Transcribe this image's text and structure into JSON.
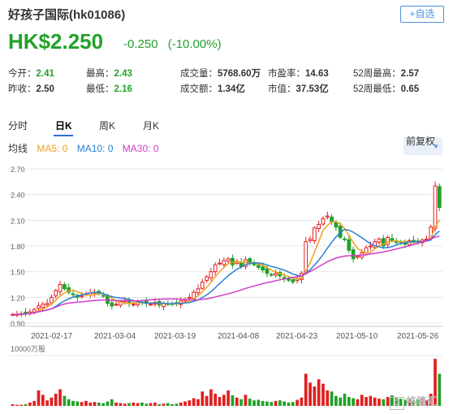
{
  "header": {
    "title": "好孩子国际(hk01086)",
    "watch_label": "+自选",
    "price": "HK$2.250",
    "change": "-0.250",
    "change_pct": "(-10.00%)"
  },
  "stats": [
    [
      {
        "label": "今开：",
        "value": "2.41",
        "color": "up"
      },
      {
        "label": "最高：",
        "value": "2.43",
        "color": "up"
      },
      {
        "label": "成交量：",
        "value": "5768.60万",
        "color": "neutral"
      },
      {
        "label": "市盈率：",
        "value": "14.63",
        "color": "neutral"
      },
      {
        "label": "52周最高：",
        "value": "2.57",
        "color": "neutral"
      }
    ],
    [
      {
        "label": "昨收：",
        "value": "2.50",
        "color": "neutral"
      },
      {
        "label": "最低：",
        "value": "2.16",
        "color": "up"
      },
      {
        "label": "成交额：",
        "value": "1.34亿",
        "color": "neutral"
      },
      {
        "label": "市值：",
        "value": "37.53亿",
        "color": "neutral"
      },
      {
        "label": "52周最低：",
        "value": "0.65",
        "color": "neutral"
      }
    ]
  ],
  "tabs": [
    "分时",
    "日K",
    "周K",
    "月K"
  ],
  "active_tab": "日K",
  "ma": {
    "label": "均线",
    "ma5": "MA5: 0",
    "ma10": "MA10: 0",
    "ma30": "MA30: 0"
  },
  "adjust_label": "前复权",
  "colors": {
    "up": "#e02020",
    "down": "#22a12a",
    "ma5": "#f0a020",
    "ma10": "#2a7fd4",
    "ma30": "#d23cc8"
  },
  "chart_data": {
    "type": "candlestick",
    "y_ticks": [
      "2.70",
      "2.40",
      "2.10",
      "1.80",
      "1.50",
      "1.20",
      "0.90"
    ],
    "x_ticks": [
      "2021-02-17",
      "2021-03-04",
      "2021-03-19",
      "2021-04-08",
      "2021-04-23",
      "2021-05-10",
      "2021-05-26"
    ],
    "volume_label": "10000万股",
    "ylim": [
      0.9,
      2.7
    ],
    "close": [
      1.0,
      1.0,
      1.01,
      1.02,
      1.03,
      1.06,
      1.1,
      1.12,
      1.13,
      1.2,
      1.28,
      1.35,
      1.3,
      1.26,
      1.23,
      1.2,
      1.22,
      1.24,
      1.25,
      1.26,
      1.24,
      1.22,
      1.13,
      1.1,
      1.12,
      1.15,
      1.16,
      1.13,
      1.12,
      1.14,
      1.14,
      1.13,
      1.12,
      1.14,
      1.11,
      1.13,
      1.12,
      1.12,
      1.13,
      1.16,
      1.18,
      1.2,
      1.26,
      1.3,
      1.38,
      1.44,
      1.5,
      1.58,
      1.6,
      1.63,
      1.65,
      1.58,
      1.62,
      1.56,
      1.64,
      1.61,
      1.58,
      1.55,
      1.52,
      1.48,
      1.46,
      1.48,
      1.45,
      1.42,
      1.4,
      1.38,
      1.42,
      1.48,
      1.85,
      1.88,
      2.01,
      2.05,
      2.12,
      2.15,
      2.08,
      2.02,
      1.9,
      1.88,
      1.75,
      1.65,
      1.68,
      1.72,
      1.78,
      1.8,
      1.85,
      1.88,
      1.8,
      1.9,
      1.86,
      1.84,
      1.85,
      1.82,
      1.86,
      1.84,
      1.85,
      1.87,
      1.88,
      2.02,
      2.5,
      2.25
    ],
    "volume": [
      0.3,
      0.2,
      0.2,
      0.3,
      0.6,
      0.9,
      2.8,
      2.0,
      1.0,
      1.5,
      2.2,
      3.0,
      1.8,
      1.2,
      0.9,
      0.8,
      0.7,
      0.9,
      0.6,
      0.7,
      0.6,
      0.5,
      0.8,
      1.2,
      0.6,
      0.5,
      0.4,
      0.5,
      0.6,
      0.5,
      0.6,
      0.4,
      0.5,
      0.6,
      0.3,
      0.4,
      0.5,
      0.3,
      0.4,
      0.6,
      0.8,
      1.0,
      1.4,
      1.2,
      2.6,
      1.8,
      3.0,
      2.2,
      1.6,
      2.0,
      2.8,
      1.9,
      1.5,
      1.2,
      2.0,
      1.3,
      1.0,
      1.1,
      0.9,
      0.8,
      0.7,
      0.9,
      1.0,
      0.8,
      0.6,
      0.7,
      1.1,
      1.5,
      5.8,
      4.2,
      3.5,
      4.8,
      4.0,
      2.8,
      2.6,
      1.8,
      1.5,
      2.2,
      1.6,
      1.4,
      1.2,
      2.0,
      1.6,
      1.8,
      1.5,
      1.3,
      1.2,
      1.6,
      1.9,
      1.4,
      1.3,
      1.1,
      1.2,
      1.0,
      1.2,
      1.4,
      1.0,
      2.2,
      8.5,
      5.8
    ]
  },
  "watermark": "格隆汇"
}
